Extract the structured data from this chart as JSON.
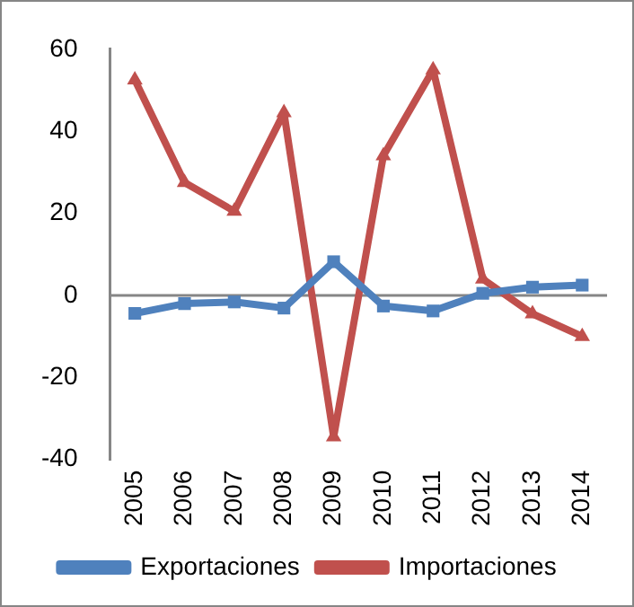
{
  "chart_data": {
    "type": "line",
    "categories": [
      "2005",
      "2006",
      "2007",
      "2008",
      "2009",
      "2010",
      "2011",
      "2012",
      "2013",
      "2014"
    ],
    "series": [
      {
        "name": "Exportaciones",
        "color": "#4f81bd",
        "marker": "square",
        "values": [
          -4.4,
          -2,
          -1.6,
          -3.1,
          8.2,
          -2.6,
          -3.8,
          0.5,
          2,
          2.5
        ]
      },
      {
        "name": "Importaciones",
        "color": "#c0504d",
        "marker": "triangle",
        "values": [
          52.5,
          27.5,
          20.5,
          44.5,
          -34.5,
          34,
          55,
          4,
          -4.5,
          -10
        ]
      }
    ],
    "ylim": [
      -40,
      60
    ],
    "yticks": [
      -40,
      -20,
      0,
      20,
      40,
      60
    ],
    "grid": false,
    "ref_lines": [
      {
        "axis": "y",
        "value": 0,
        "color": "#868686"
      }
    ],
    "legend": "bottom",
    "line_style": "solid"
  }
}
